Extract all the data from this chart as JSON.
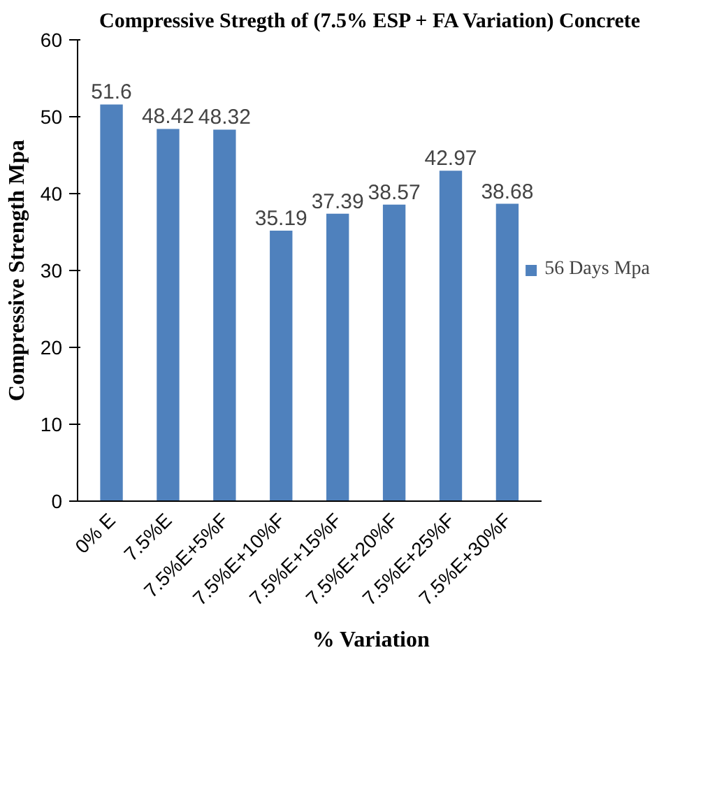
{
  "chart_data": {
    "type": "bar",
    "title": "Compressive Stregth of (7.5% ESP + FA Variation) Concrete",
    "xlabel": "% Variation",
    "ylabel": "Compressive Strength Mpa",
    "categories": [
      "0% E",
      "7.5%E",
      "7.5%E+5%F",
      "7.5%E+10%F",
      "7.5%E+15%F",
      "7.5%E+20%F",
      "7.5%E+25%F",
      "7.5%E+30%F"
    ],
    "series": [
      {
        "name": "56 Days Mpa",
        "color": "#4f81bd",
        "values": [
          51.6,
          48.42,
          48.32,
          35.19,
          37.39,
          38.57,
          42.97,
          38.68
        ]
      }
    ],
    "ylim": [
      0,
      60
    ],
    "yticks": [
      0,
      10,
      20,
      30,
      40,
      50,
      60
    ],
    "grid": false,
    "legend": "right",
    "data_labels": true
  }
}
